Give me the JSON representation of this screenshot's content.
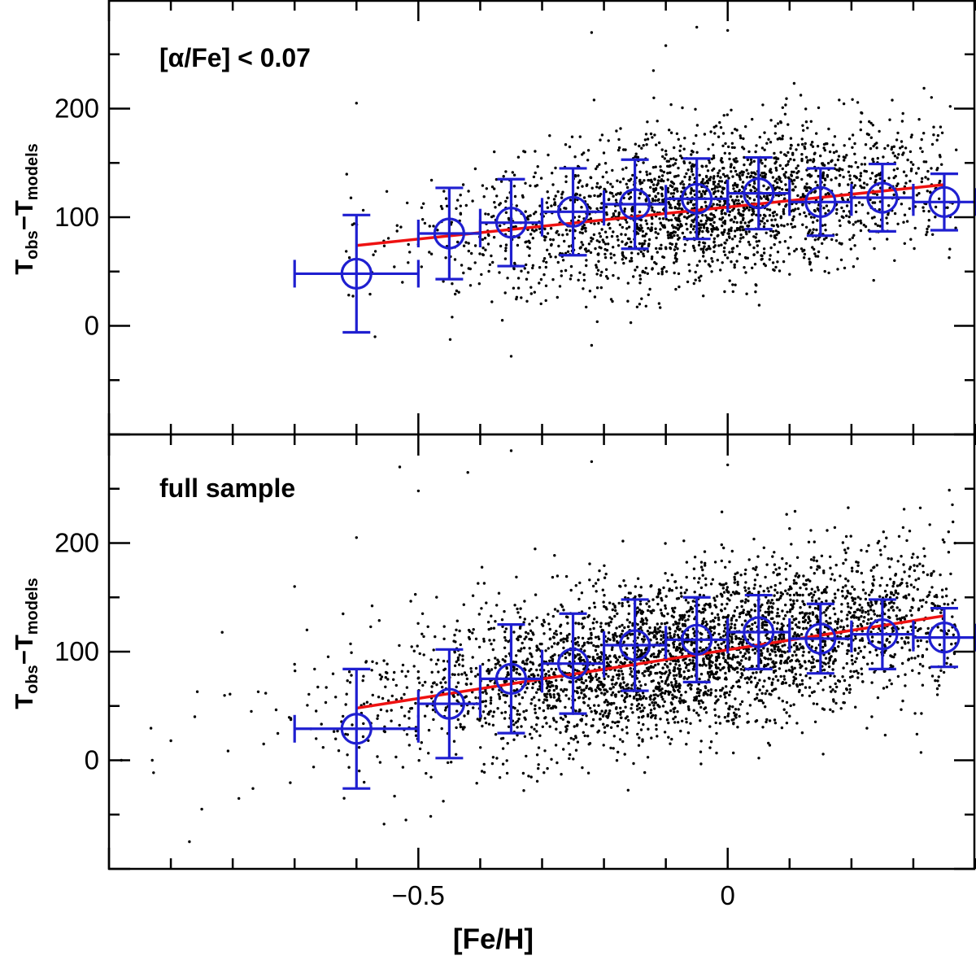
{
  "chart_data": [
    {
      "type": "scatter",
      "panel": "top",
      "annotation": "[α/Fe] < 0.07",
      "xlabel": "[Fe/H]",
      "ylabel": {
        "main": "T",
        "sub1": "obs",
        "dash": "−T",
        "sub2": "models"
      },
      "xlim": [
        -1.0,
        0.4
      ],
      "ylim": [
        -100,
        300
      ],
      "xticks_labeled": [
        -0.5,
        0
      ],
      "xtick_labels": [
        "−0.5",
        "0"
      ],
      "yticks_labeled": [
        0,
        100,
        200
      ],
      "ytick_labels": [
        "0",
        "100",
        "200"
      ],
      "xtick_minor_step": 0.1,
      "ytick_minor_step": 50,
      "show_x_tick_labels": false,
      "grid": false,
      "colors": {
        "points": "#000000",
        "bins": "#1f1fd0",
        "fit": "#ee1111"
      },
      "scatter_cloud": {
        "n_points": 2300,
        "seed": 7,
        "x_center": -0.02,
        "x_spread": 0.21,
        "x_min": -0.62,
        "x_max": 0.37,
        "y_center_at_x0": 112,
        "y_slope": 60,
        "y_spread": 34
      },
      "scatter_points_sample": [
        {
          "x": -0.6,
          "y": 205
        },
        {
          "x": -0.22,
          "y": 270
        },
        {
          "x": -0.05,
          "y": 275
        },
        {
          "x": -0.12,
          "y": 235
        },
        {
          "x": -0.35,
          "y": -28
        },
        {
          "x": -0.22,
          "y": -18
        },
        {
          "x": -0.57,
          "y": -10
        },
        {
          "x": 0.0,
          "y": 272
        },
        {
          "x": -0.1,
          "y": 258
        }
      ],
      "binned": [
        {
          "x": -0.6,
          "y": 48,
          "xerr": 0.1,
          "yerr": 54
        },
        {
          "x": -0.45,
          "y": 85,
          "xerr": 0.05,
          "yerr": 42
        },
        {
          "x": -0.35,
          "y": 95,
          "xerr": 0.05,
          "yerr": 40
        },
        {
          "x": -0.25,
          "y": 105,
          "xerr": 0.05,
          "yerr": 40
        },
        {
          "x": -0.15,
          "y": 112,
          "xerr": 0.05,
          "yerr": 41
        },
        {
          "x": -0.05,
          "y": 117,
          "xerr": 0.05,
          "yerr": 37
        },
        {
          "x": 0.05,
          "y": 122,
          "xerr": 0.05,
          "yerr": 33
        },
        {
          "x": 0.15,
          "y": 114,
          "xerr": 0.05,
          "yerr": 31
        },
        {
          "x": 0.25,
          "y": 118,
          "xerr": 0.05,
          "yerr": 31
        },
        {
          "x": 0.35,
          "y": 114,
          "xerr": 0.05,
          "yerr": 26
        }
      ],
      "fit_line": {
        "x": [
          -0.6,
          0.35
        ],
        "y": [
          74,
          130
        ]
      }
    },
    {
      "type": "scatter",
      "panel": "bottom",
      "annotation": "full sample",
      "xlabel": "[Fe/H]",
      "ylabel": {
        "main": "T",
        "sub1": "obs",
        "dash": "−T",
        "sub2": "models"
      },
      "xlim": [
        -1.0,
        0.4
      ],
      "ylim": [
        -100,
        300
      ],
      "xticks_labeled": [
        -0.5,
        0
      ],
      "xtick_labels": [
        "−0.5",
        "0"
      ],
      "yticks_labeled": [
        0,
        100,
        200
      ],
      "ytick_labels": [
        "0",
        "100",
        "200"
      ],
      "xtick_minor_step": 0.1,
      "ytick_minor_step": 50,
      "show_x_tick_labels": true,
      "grid": false,
      "colors": {
        "points": "#000000",
        "bins": "#1f1fd0",
        "fit": "#ee1111"
      },
      "scatter_cloud": {
        "n_points": 3600,
        "seed": 11,
        "x_center": -0.06,
        "x_spread": 0.24,
        "x_min": -0.95,
        "x_max": 0.37,
        "y_center_at_x0": 105,
        "y_slope": 88,
        "y_spread": 37
      },
      "scatter_points_sample": [
        {
          "x": -0.98,
          "y": 0
        },
        {
          "x": -0.93,
          "y": 0
        },
        {
          "x": -0.9,
          "y": 18
        },
        {
          "x": -0.87,
          "y": -75
        },
        {
          "x": -0.85,
          "y": -45
        },
        {
          "x": -0.77,
          "y": 45
        },
        {
          "x": -0.75,
          "y": 15
        },
        {
          "x": -0.7,
          "y": 160
        },
        {
          "x": -0.68,
          "y": 120
        },
        {
          "x": -0.6,
          "y": 205
        },
        {
          "x": -0.53,
          "y": 270
        },
        {
          "x": -0.5,
          "y": 248
        },
        {
          "x": -0.42,
          "y": 265
        },
        {
          "x": -0.35,
          "y": 285
        },
        {
          "x": -0.22,
          "y": 275
        },
        {
          "x": 0.0,
          "y": 272
        },
        {
          "x": -0.52,
          "y": -55
        },
        {
          "x": -0.62,
          "y": -35
        }
      ],
      "binned": [
        {
          "x": -0.6,
          "y": 29,
          "xerr": 0.1,
          "yerr": 55
        },
        {
          "x": -0.45,
          "y": 52,
          "xerr": 0.05,
          "yerr": 50
        },
        {
          "x": -0.35,
          "y": 75,
          "xerr": 0.05,
          "yerr": 50
        },
        {
          "x": -0.25,
          "y": 89,
          "xerr": 0.05,
          "yerr": 46
        },
        {
          "x": -0.15,
          "y": 106,
          "xerr": 0.05,
          "yerr": 42
        },
        {
          "x": -0.05,
          "y": 111,
          "xerr": 0.05,
          "yerr": 39
        },
        {
          "x": 0.05,
          "y": 118,
          "xerr": 0.05,
          "yerr": 34
        },
        {
          "x": 0.15,
          "y": 112,
          "xerr": 0.05,
          "yerr": 32
        },
        {
          "x": 0.25,
          "y": 116,
          "xerr": 0.05,
          "yerr": 32
        },
        {
          "x": 0.35,
          "y": 113,
          "xerr": 0.05,
          "yerr": 27
        }
      ],
      "fit_line": {
        "x": [
          -0.6,
          0.35
        ],
        "y": [
          48,
          133
        ]
      }
    }
  ]
}
